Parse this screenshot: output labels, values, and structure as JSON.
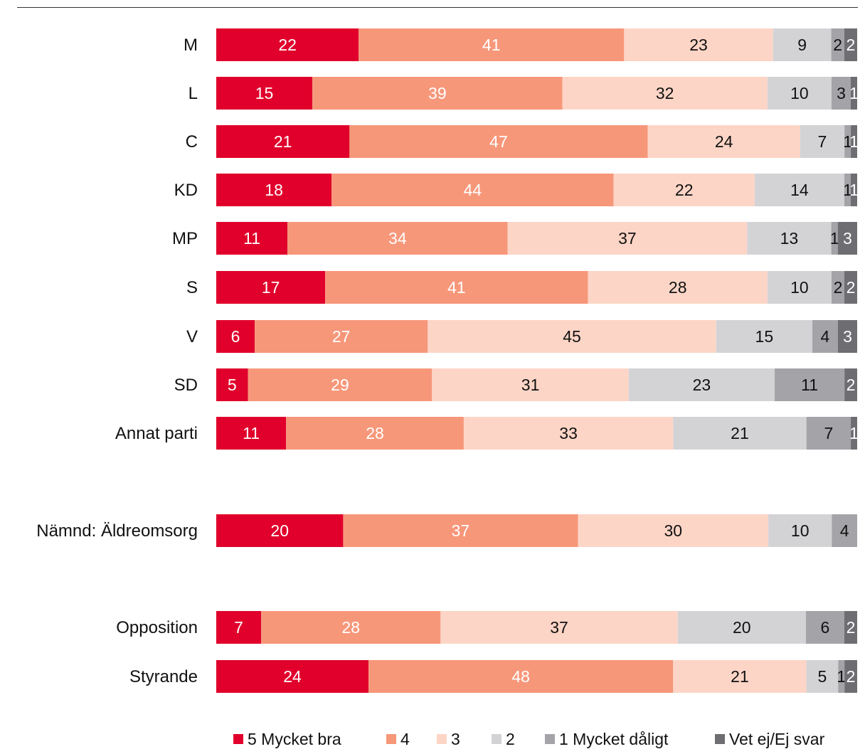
{
  "chart_data": {
    "type": "bar",
    "orientation": "horizontal",
    "stacked": true,
    "title": "",
    "xlabel": "",
    "ylabel": "",
    "xlim": [
      0,
      100
    ],
    "grid": false,
    "legend_position": "bottom",
    "categories": [
      "M",
      "L",
      "C",
      "KD",
      "MP",
      "S",
      "V",
      "SD",
      "Annat parti",
      "Nämnd: Äldreomsorg",
      "Opposition",
      "Styrande"
    ],
    "series": [
      {
        "name": "5 Mycket bra",
        "color": "#e0002b",
        "label_color": "#ffffff",
        "values": [
          22,
          15,
          21,
          18,
          11,
          17,
          6,
          5,
          11,
          20,
          7,
          24
        ]
      },
      {
        "name": "4",
        "color": "#f7977a",
        "label_color": "#ffffff",
        "values": [
          41,
          39,
          47,
          44,
          34,
          41,
          27,
          29,
          28,
          37,
          28,
          48
        ]
      },
      {
        "name": "3",
        "color": "#fdd5c6",
        "label_color": "#111111",
        "values": [
          23,
          32,
          24,
          22,
          37,
          28,
          45,
          31,
          33,
          30,
          37,
          21
        ]
      },
      {
        "name": "2",
        "color": "#d3d3d6",
        "label_color": "#111111",
        "values": [
          9,
          10,
          7,
          14,
          13,
          10,
          15,
          23,
          21,
          10,
          20,
          5
        ]
      },
      {
        "name": "1 Mycket dåligt",
        "color": "#a3a3a8",
        "label_color": "#111111",
        "values": [
          2,
          3,
          1,
          1,
          1,
          2,
          4,
          11,
          7,
          4,
          6,
          1
        ]
      },
      {
        "name": "Vet ej/Ej svar",
        "color": "#6e6e72",
        "label_color": "#ffffff",
        "values": [
          2,
          1,
          1,
          1,
          3,
          2,
          3,
          2,
          1,
          null,
          2,
          2
        ]
      }
    ]
  }
}
